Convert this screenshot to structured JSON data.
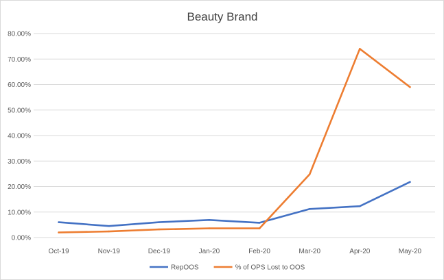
{
  "chart_data": {
    "type": "line",
    "title": "Beauty Brand",
    "xlabel": "",
    "ylabel": "",
    "categories": [
      "Oct-19",
      "Nov-19",
      "Dec-19",
      "Jan-20",
      "Feb-20",
      "Mar-20",
      "Apr-20",
      "May-20"
    ],
    "y_ticks": [
      "0.00%",
      "10.00%",
      "20.00%",
      "30.00%",
      "40.00%",
      "50.00%",
      "60.00%",
      "70.00%",
      "80.00%"
    ],
    "ylim": [
      0,
      80
    ],
    "grid": true,
    "legend_position": "bottom",
    "series": [
      {
        "name": "RepOOS",
        "color": "#4472c4",
        "values": [
          6.0,
          4.5,
          6.0,
          6.9,
          5.8,
          11.2,
          12.3,
          21.8
        ]
      },
      {
        "name": "% of OPS Lost to OOS",
        "color": "#ed7d31",
        "values": [
          2.0,
          2.4,
          3.2,
          3.6,
          3.6,
          24.8,
          74.0,
          59.0
        ]
      }
    ]
  }
}
